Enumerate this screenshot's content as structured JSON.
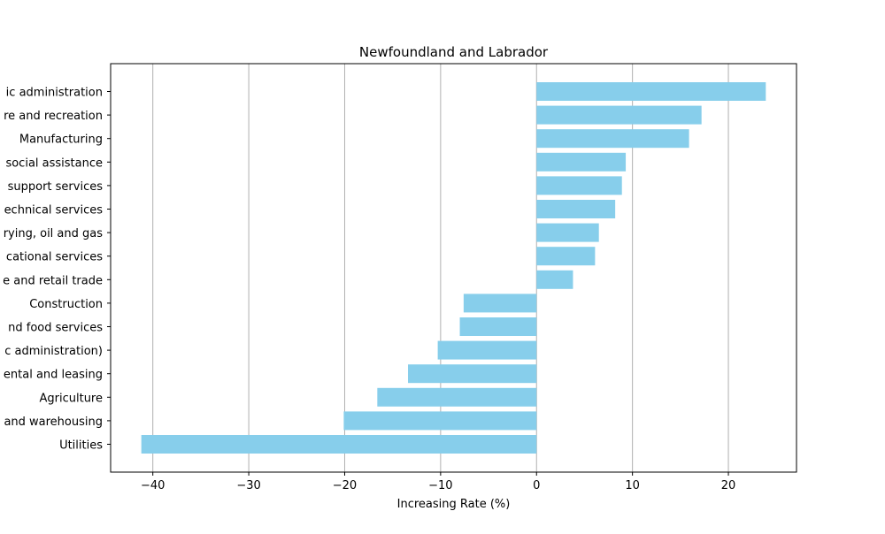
{
  "chart_data": {
    "type": "bar",
    "orientation": "horizontal",
    "title": "Newfoundland and Labrador",
    "xlabel": "Increasing Rate (%)",
    "ylabel": "",
    "xlim": [
      -44.4,
      27.1
    ],
    "xticks": [
      -40,
      -30,
      -20,
      -10,
      0,
      10,
      20
    ],
    "xtick_labels": [
      "−40",
      "−30",
      "−20",
      "−10",
      "0",
      "10",
      "20"
    ],
    "grid": "vertical",
    "bar_color": "#87CEEB",
    "categories": [
      "ic administration",
      "re and recreation",
      "Manufacturing",
      "social assistance",
      "support services",
      "echnical services",
      "rying, oil and gas",
      "cational services",
      "e and retail trade",
      "Construction",
      "nd food services",
      "c administration)",
      "ental and leasing",
      "Agriculture",
      "and warehousing",
      "Utilities"
    ],
    "values": [
      23.9,
      17.2,
      15.9,
      9.3,
      8.9,
      8.2,
      6.5,
      6.1,
      3.8,
      -7.6,
      -8.0,
      -10.3,
      -13.4,
      -16.6,
      -20.1,
      -41.2
    ]
  }
}
